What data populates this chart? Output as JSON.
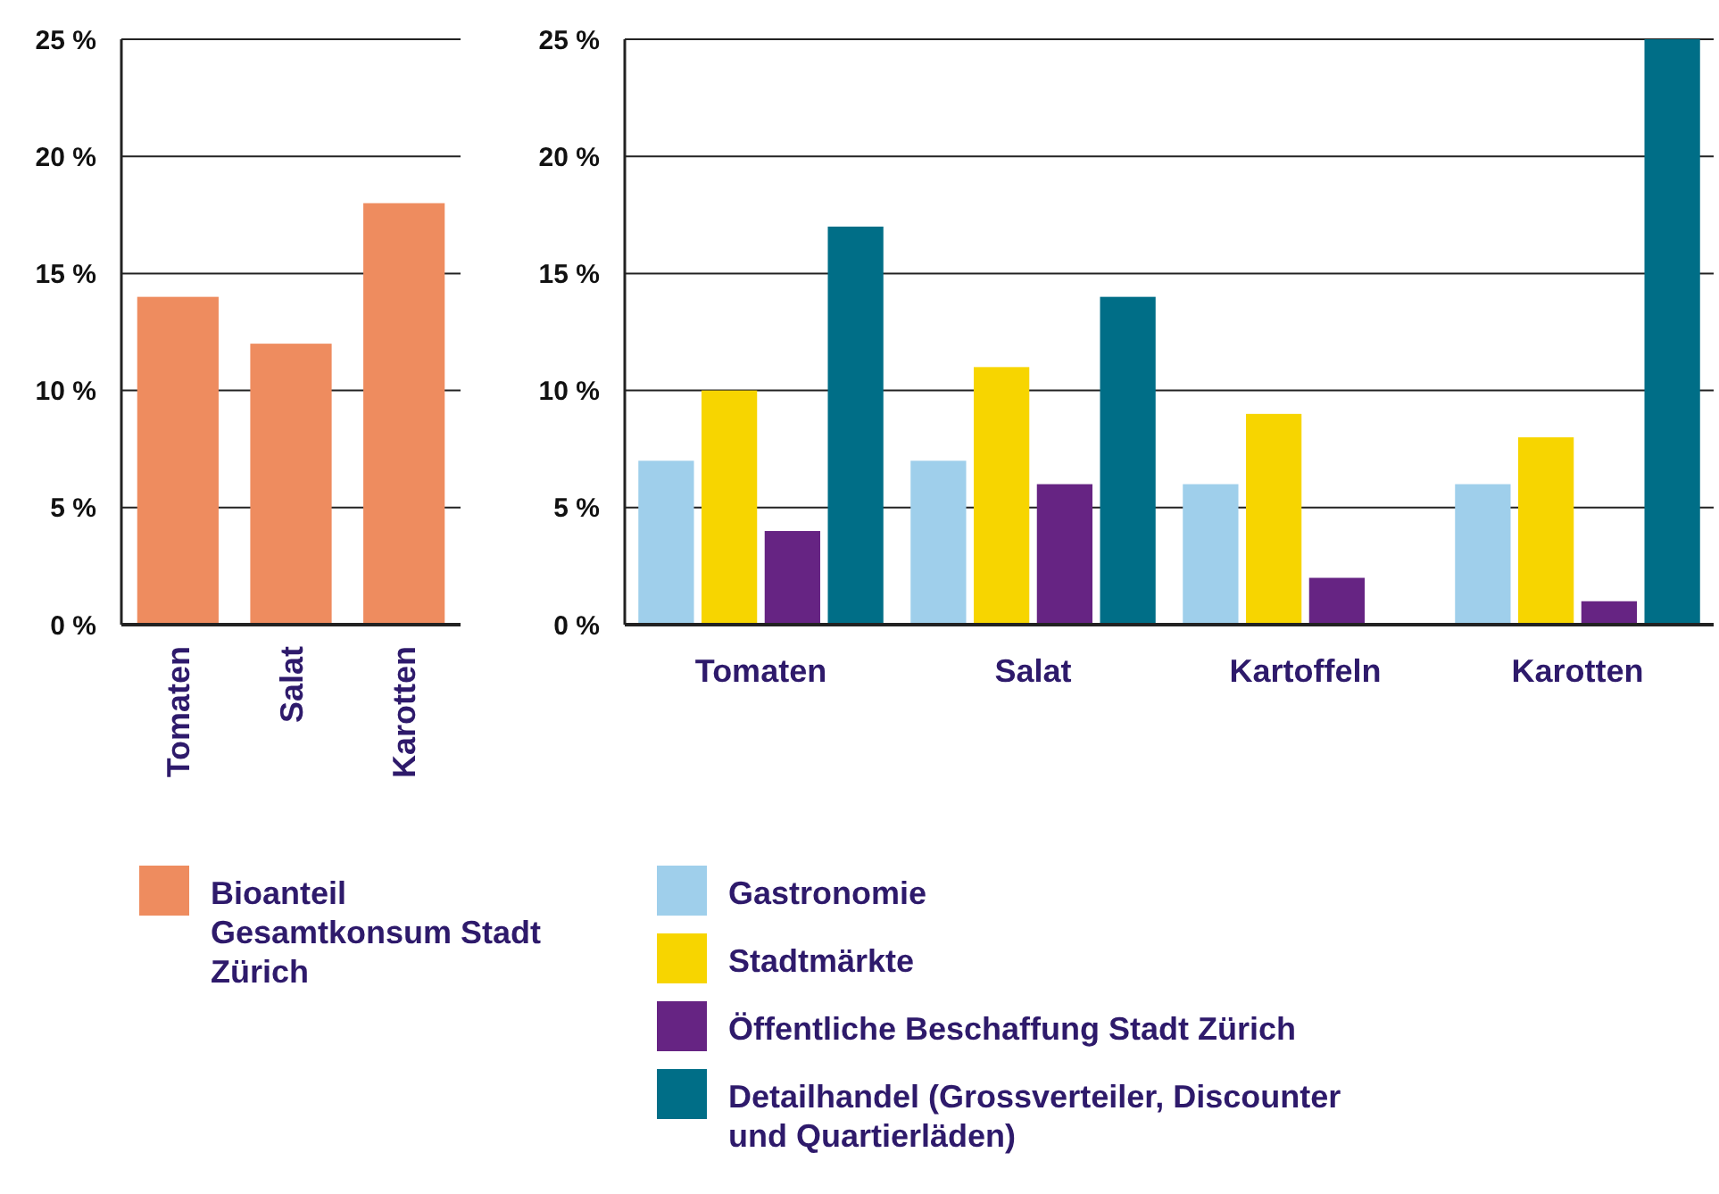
{
  "chart_data": [
    {
      "type": "bar",
      "categories": [
        "Tomaten",
        "Salat",
        "Karotten"
      ],
      "series": [
        {
          "name": "Bioanteil Gesamtkonsum Stadt Zürich",
          "color": "#ee8c5f",
          "values": [
            14,
            12,
            18
          ]
        }
      ],
      "ylim": [
        0,
        25
      ],
      "yticks": [
        {
          "value": 0,
          "label": "0 %"
        },
        {
          "value": 5,
          "label": "5 %"
        },
        {
          "value": 10,
          "label": "10 %"
        },
        {
          "value": 15,
          "label": "15 %"
        },
        {
          "value": 20,
          "label": "20 %"
        },
        {
          "value": 25,
          "label": "25 %"
        }
      ],
      "grid": "y",
      "legend": "bottom"
    },
    {
      "type": "bar",
      "categories": [
        "Tomaten",
        "Salat",
        "Kartoffeln",
        "Karotten"
      ],
      "series": [
        {
          "name": "Gastronomie",
          "color": "#9fcfeb",
          "values": [
            7,
            7,
            6,
            6
          ]
        },
        {
          "name": "Stadtmärkte",
          "color": "#f7d500",
          "values": [
            10,
            11,
            9,
            8
          ]
        },
        {
          "name": "Öffentliche Beschaffung Stadt Zürich",
          "color": "#662483",
          "values": [
            4,
            6,
            2,
            1
          ]
        },
        {
          "name": "Detailhandel (Grossverteiler, Discounter und Quartierläden)",
          "color": "#006e87",
          "values": [
            17,
            14,
            null,
            25
          ]
        }
      ],
      "ylim": [
        0,
        25
      ],
      "yticks": [
        {
          "value": 0,
          "label": "0 %"
        },
        {
          "value": 5,
          "label": "5 %"
        },
        {
          "value": 10,
          "label": "10 %"
        },
        {
          "value": 15,
          "label": "15 %"
        },
        {
          "value": 20,
          "label": "20 %"
        },
        {
          "value": 25,
          "label": "25 %"
        }
      ],
      "grid": "y",
      "legend": "bottom"
    }
  ]
}
